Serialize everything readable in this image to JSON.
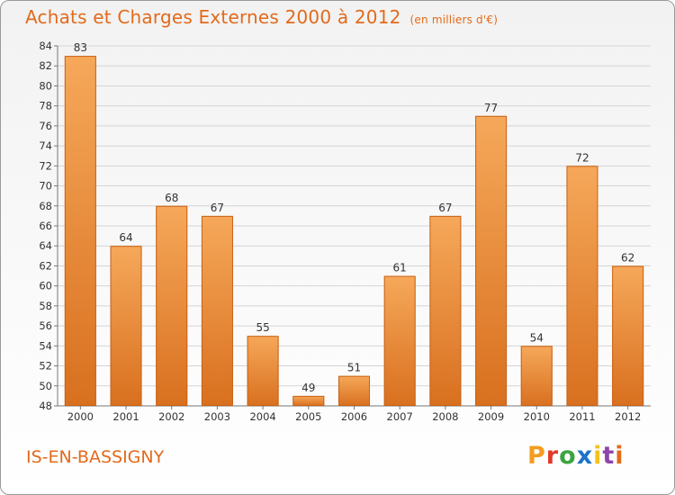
{
  "header": {
    "title": "Achats et Charges Externes 2000 à 2012",
    "unit": "(en milliers d'€)"
  },
  "footer": {
    "city": "IS-EN-BASSIGNY",
    "logo_text": "Proxiti",
    "logo_colors": [
      "#f39c1f",
      "#e23a2a",
      "#3aa540",
      "#1e72c8",
      "#f0c419",
      "#8e44ad",
      "#e26a1b"
    ]
  },
  "colors": {
    "title": "#e26a1b",
    "bar_top": "#f6a85a",
    "bar_bottom": "#d8701f"
  },
  "chart_data": {
    "type": "bar",
    "categories": [
      "2000",
      "2001",
      "2002",
      "2003",
      "2004",
      "2005",
      "2006",
      "2007",
      "2008",
      "2009",
      "2010",
      "2011",
      "2012"
    ],
    "values": [
      83,
      64,
      68,
      67,
      55,
      49,
      51,
      61,
      67,
      77,
      54,
      72,
      62
    ],
    "title": "Achats et Charges Externes 2000 à 2012",
    "ylim": [
      48,
      84
    ],
    "yticks": [
      48,
      50,
      52,
      54,
      56,
      58,
      60,
      62,
      64,
      66,
      68,
      70,
      72,
      74,
      76,
      78,
      80,
      82,
      84
    ],
    "grid": true
  }
}
